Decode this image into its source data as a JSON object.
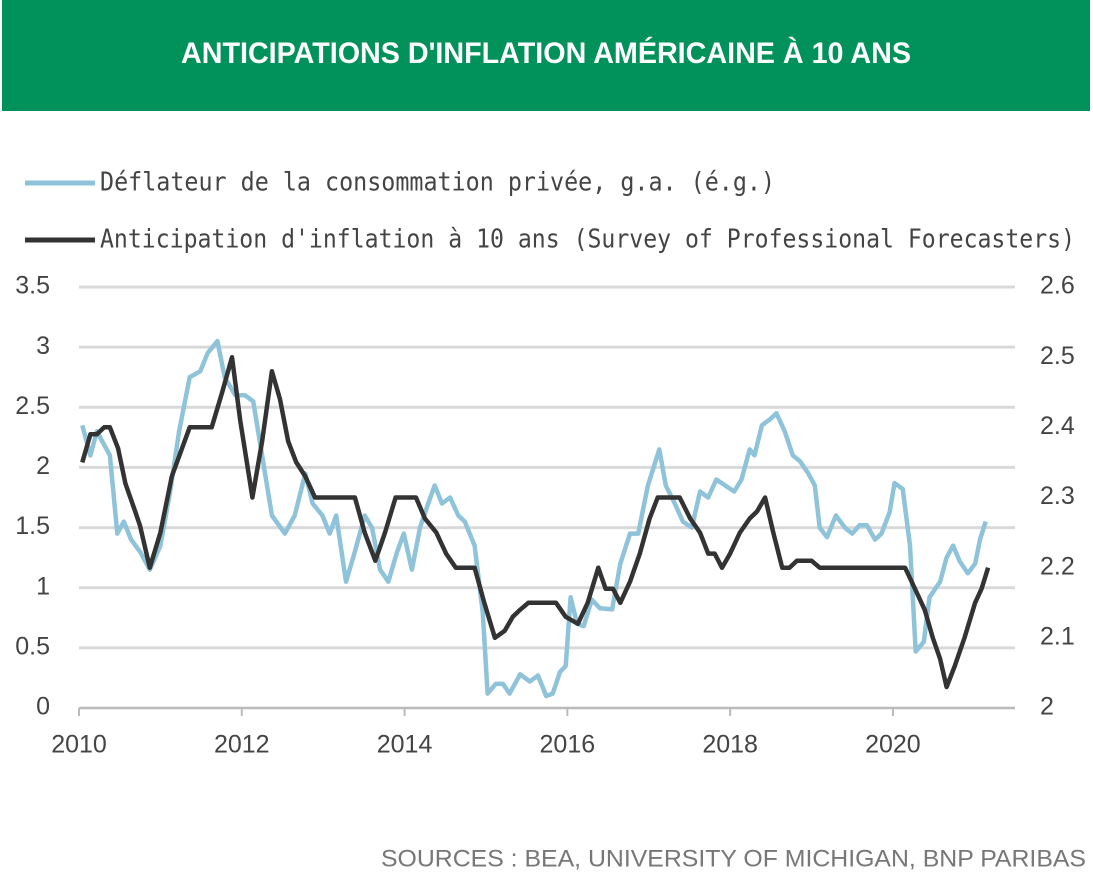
{
  "chart_data": {
    "type": "line",
    "title": "ANTICIPATIONS D'INFLATION AMÉRICAINE À 10 ANS",
    "source": "SOURCES : BEA, UNIVERSITY OF MICHIGAN, BNP PARIBAS",
    "xlim": [
      2010,
      2021.5
    ],
    "xticks": [
      2010,
      2012,
      2014,
      2016,
      2018,
      2020
    ],
    "ylim": [
      0,
      3.5
    ],
    "yticks": [
      0,
      0.5,
      1,
      1.5,
      2,
      2.5,
      3,
      3.5
    ],
    "y2lim": [
      2,
      2.6
    ],
    "y2ticks": [
      2,
      2.1,
      2.2,
      2.3,
      2.4,
      2.5,
      2.6
    ],
    "grid": true,
    "legend": "top",
    "series": [
      {
        "name": "Déflateur de la consommation privée, g.a. (é.g.)",
        "color": "#8ec3d9",
        "axis": "y",
        "x": [
          2010.04,
          2010.14,
          2010.22,
          2010.38,
          2010.47,
          2010.55,
          2010.64,
          2010.75,
          2010.87,
          2011.0,
          2011.12,
          2011.23,
          2011.36,
          2011.49,
          2011.58,
          2011.7,
          2011.79,
          2011.92,
          2012.04,
          2012.14,
          2012.25,
          2012.37,
          2012.53,
          2012.65,
          2012.78,
          2012.87,
          2012.99,
          2013.08,
          2013.16,
          2013.28,
          2013.39,
          2013.51,
          2013.6,
          2013.7,
          2013.8,
          2013.91,
          2013.99,
          2014.09,
          2014.19,
          2014.29,
          2014.37,
          2014.46,
          2014.56,
          2014.66,
          2014.74,
          2014.86,
          2014.96,
          2015.02,
          2015.12,
          2015.21,
          2015.29,
          2015.42,
          2015.54,
          2015.64,
          2015.74,
          2015.82,
          2015.91,
          2015.98,
          2016.04,
          2016.12,
          2016.2,
          2016.3,
          2016.4,
          2016.55,
          2016.65,
          2016.77,
          2016.87,
          2016.99,
          2017.13,
          2017.21,
          2017.32,
          2017.42,
          2017.53,
          2017.63,
          2017.73,
          2017.83,
          2017.94,
          2018.05,
          2018.14,
          2018.24,
          2018.3,
          2018.39,
          2018.49,
          2018.57,
          2018.67,
          2018.77,
          2018.86,
          2018.96,
          2019.04,
          2019.1,
          2019.19,
          2019.3,
          2019.41,
          2019.5,
          2019.59,
          2019.68,
          2019.78,
          2019.86,
          2019.96,
          2020.02,
          2020.12,
          2020.21,
          2020.28,
          2020.38,
          2020.45,
          2020.58,
          2020.66,
          2020.74,
          2020.82,
          2020.92,
          2021.01,
          2021.07,
          2021.14
        ],
        "values": [
          2.35,
          2.1,
          2.3,
          2.1,
          1.45,
          1.55,
          1.4,
          1.3,
          1.15,
          1.35,
          1.8,
          2.3,
          2.75,
          2.8,
          2.95,
          3.05,
          2.75,
          2.6,
          2.6,
          2.55,
          2.1,
          1.6,
          1.45,
          1.6,
          1.95,
          1.7,
          1.6,
          1.45,
          1.6,
          1.05,
          1.3,
          1.6,
          1.5,
          1.15,
          1.05,
          1.3,
          1.45,
          1.15,
          1.5,
          1.7,
          1.85,
          1.7,
          1.75,
          1.6,
          1.55,
          1.35,
          0.8,
          0.12,
          0.2,
          0.2,
          0.12,
          0.28,
          0.22,
          0.27,
          0.1,
          0.12,
          0.3,
          0.35,
          0.92,
          0.7,
          0.68,
          0.9,
          0.83,
          0.82,
          1.2,
          1.45,
          1.45,
          1.85,
          2.15,
          1.85,
          1.7,
          1.55,
          1.5,
          1.8,
          1.75,
          1.9,
          1.85,
          1.8,
          1.9,
          2.15,
          2.1,
          2.35,
          2.4,
          2.45,
          2.3,
          2.1,
          2.05,
          1.95,
          1.85,
          1.5,
          1.42,
          1.6,
          1.5,
          1.45,
          1.52,
          1.52,
          1.4,
          1.45,
          1.63,
          1.87,
          1.82,
          1.35,
          0.47,
          0.55,
          0.92,
          1.05,
          1.25,
          1.35,
          1.22,
          1.12,
          1.2,
          1.4,
          1.55
        ]
      },
      {
        "name": "Anticipation d'inflation à 10 ans (Survey of Professional Forecasters)",
        "color": "#333333",
        "axis": "y2",
        "x": [
          2010.04,
          2010.14,
          2010.22,
          2010.31,
          2010.38,
          2010.48,
          2010.57,
          2010.69,
          2010.75,
          2010.87,
          2011.0,
          2011.14,
          2011.36,
          2011.63,
          2011.76,
          2011.88,
          2011.98,
          2012.13,
          2012.25,
          2012.37,
          2012.47,
          2012.57,
          2012.67,
          2012.78,
          2012.9,
          2013.39,
          2013.51,
          2013.64,
          2013.76,
          2013.89,
          2014.14,
          2014.25,
          2014.39,
          2014.51,
          2014.63,
          2014.86,
          2014.98,
          2015.11,
          2015.23,
          2015.33,
          2015.42,
          2015.52,
          2015.86,
          2015.98,
          2016.13,
          2016.25,
          2016.38,
          2016.47,
          2016.56,
          2016.65,
          2016.77,
          2016.89,
          2017.01,
          2017.11,
          2017.38,
          2017.51,
          2017.63,
          2017.73,
          2017.81,
          2017.9,
          2018.0,
          2018.12,
          2018.24,
          2018.33,
          2018.43,
          2018.53,
          2018.64,
          2018.73,
          2018.82,
          2019.0,
          2019.1,
          2020.15,
          2020.27,
          2020.39,
          2020.49,
          2020.58,
          2020.66,
          2020.76,
          2020.88,
          2021.01,
          2021.09,
          2021.17
        ],
        "values": [
          2.35,
          2.39,
          2.39,
          2.4,
          2.4,
          2.37,
          2.32,
          2.28,
          2.26,
          2.2,
          2.25,
          2.33,
          2.4,
          2.4,
          2.45,
          2.5,
          2.41,
          2.3,
          2.38,
          2.48,
          2.44,
          2.38,
          2.35,
          2.33,
          2.3,
          2.3,
          2.25,
          2.21,
          2.25,
          2.3,
          2.3,
          2.27,
          2.25,
          2.22,
          2.2,
          2.2,
          2.15,
          2.1,
          2.11,
          2.13,
          2.14,
          2.15,
          2.15,
          2.13,
          2.12,
          2.15,
          2.2,
          2.17,
          2.17,
          2.15,
          2.18,
          2.22,
          2.27,
          2.3,
          2.3,
          2.27,
          2.25,
          2.22,
          2.22,
          2.2,
          2.22,
          2.25,
          2.27,
          2.28,
          2.3,
          2.25,
          2.2,
          2.2,
          2.21,
          2.21,
          2.2,
          2.2,
          2.17,
          2.14,
          2.1,
          2.07,
          2.03,
          2.06,
          2.1,
          2.15,
          2.17,
          2.2
        ]
      }
    ]
  }
}
